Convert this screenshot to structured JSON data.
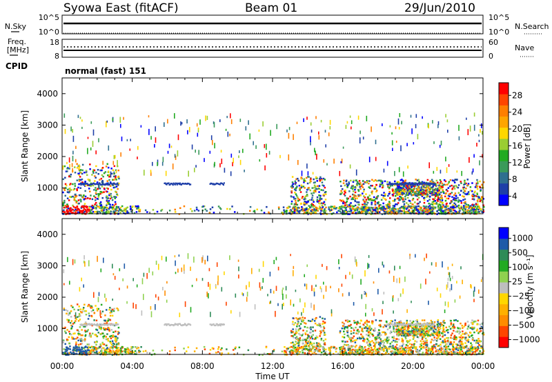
{
  "header": {
    "station": "Syowa East (fitACF)",
    "beam": "Beam 01",
    "date": "29/Jun/2010"
  },
  "status_panels": {
    "nsky_label": "N.Sky",
    "nsearch_label": "N.Search",
    "nsky_ticks": [
      "10^5",
      "10^0"
    ],
    "nsearch_ticks": [
      "10^5",
      "10^0"
    ],
    "freq_label_line1": "Freq.",
    "freq_label_line2": "[MHz]",
    "freq_ticks": [
      "18",
      "8"
    ],
    "nave_label": "Nave",
    "nave_ticks": [
      "60",
      "0"
    ],
    "cpid_label": "CPID",
    "cpid_value": "normal (fast) 151"
  },
  "chart_data": [
    {
      "type": "heatmap",
      "name": "power-panel",
      "ylabel": "Slant Range [km]",
      "ylim": [
        180,
        4500
      ],
      "yticks": [
        1000,
        2000,
        3000,
        4000
      ],
      "colorbar": {
        "label": "Power [dB]",
        "ticks": [
          "28",
          "24",
          "20",
          "16",
          "12",
          "8",
          "4"
        ],
        "colors": [
          "#0000ff",
          "#1e3fa8",
          "#2f6f8f",
          "#3a9a5a",
          "#22aa22",
          "#9acd32",
          "#ffd700",
          "#ffa500",
          "#ff7f00",
          "#ff4500",
          "#ff0000"
        ]
      },
      "echo_regions_hours": [
        {
          "t0": 0.0,
          "t1": 3.2,
          "r0": 200,
          "r1": 1800,
          "level": "high-low"
        },
        {
          "t0": 13.0,
          "t1": 15.0,
          "r0": 300,
          "r1": 1400,
          "level": "mixed"
        },
        {
          "t0": 15.8,
          "t1": 24.0,
          "r0": 200,
          "r1": 1300,
          "level": "mixed"
        },
        {
          "t0": 19.0,
          "t1": 21.5,
          "r0": 800,
          "r1": 1200,
          "level": "medium"
        }
      ]
    },
    {
      "type": "heatmap",
      "name": "velocity-panel",
      "ylabel": "Slant Range [km]",
      "ylim": [
        180,
        4500
      ],
      "yticks": [
        1000,
        2000,
        3000,
        4000
      ],
      "colorbar": {
        "label": "Velocity [m s⁻¹]",
        "ticks": [
          "1000",
          "500",
          "100",
          "25",
          "−25",
          "−100",
          "−500",
          "−1000"
        ],
        "colors": [
          "#ff0000",
          "#ff4500",
          "#ff8c00",
          "#ffb000",
          "#ffd700",
          "#bebebe",
          "#8fd14f",
          "#22aa22",
          "#2e8b57",
          "#1e5aa8",
          "#0000ff"
        ]
      }
    }
  ],
  "x_axis": {
    "label": "Time UT",
    "ticks": [
      "00:00",
      "04:00",
      "08:00",
      "12:00",
      "16:00",
      "20:00",
      "00:00"
    ],
    "range_hours": [
      0,
      24
    ]
  }
}
